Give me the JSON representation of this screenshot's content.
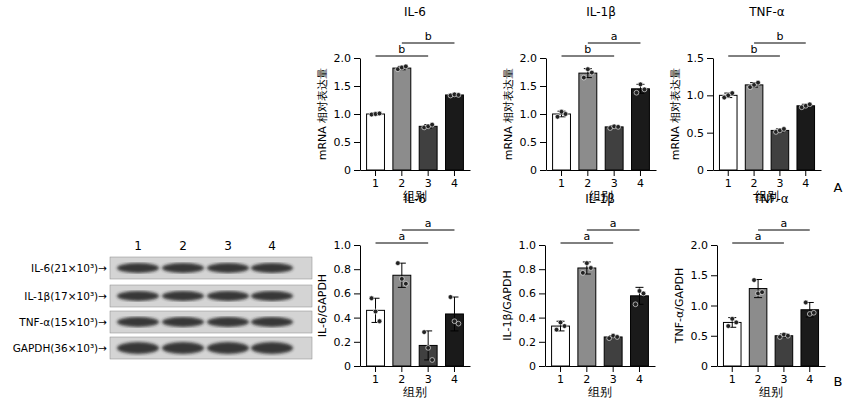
{
  "chart_data": [
    {
      "type": "bar",
      "title": "IL-6",
      "y_label": "mRNA 相对表达量",
      "x_label": "组别",
      "categories": [
        "1",
        "2",
        "3",
        "4"
      ],
      "values": [
        1.0,
        1.82,
        0.78,
        1.34
      ],
      "errors": [
        0.02,
        0.03,
        0.03,
        0.02
      ],
      "points": [
        [
          0.99,
          1.0,
          1.01
        ],
        [
          1.8,
          1.83,
          1.85
        ],
        [
          0.76,
          0.78,
          0.81
        ],
        [
          1.33,
          1.35,
          1.34
        ]
      ],
      "colors": [
        "#ffffff",
        "#8c8c8c",
        "#404040",
        "#1a1a1a"
      ],
      "ylim": [
        0,
        2
      ],
      "yticks": [
        0,
        0.5,
        {
          "value": 1,
          "label": "1.0"
        },
        1.5,
        {
          "value": 2,
          "label": "2.0"
        }
      ],
      "annotations": [
        {
          "text": "b",
          "between": [
            "1",
            "3"
          ]
        },
        {
          "text": "b",
          "between": [
            "2",
            "4"
          ]
        }
      ]
    },
    {
      "type": "bar",
      "title": "IL-1β",
      "y_label": "mRNA 相对表达量",
      "x_label": "组别",
      "categories": [
        "1",
        "2",
        "3",
        "4"
      ],
      "values": [
        1.0,
        1.73,
        0.77,
        1.45
      ],
      "errors": [
        0.05,
        0.08,
        0.02,
        0.08
      ],
      "points": [
        [
          0.95,
          1.04,
          1.0
        ],
        [
          1.65,
          1.8,
          1.74
        ],
        [
          0.75,
          0.78,
          0.77
        ],
        [
          1.38,
          1.53,
          1.44
        ]
      ],
      "colors": [
        "#ffffff",
        "#8c8c8c",
        "#404040",
        "#1a1a1a"
      ],
      "ylim": [
        0,
        2
      ],
      "yticks": [
        0,
        0.5,
        {
          "value": 1,
          "label": "1.0"
        },
        1.5,
        {
          "value": 2,
          "label": "2.0"
        }
      ],
      "annotations": [
        {
          "text": "b",
          "between": [
            "1",
            "3"
          ]
        },
        {
          "text": "a",
          "between": [
            "2",
            "4"
          ]
        }
      ]
    },
    {
      "type": "bar",
      "title": "TNF-α",
      "y_label": "mRNA 相对表达量",
      "x_label": "组别",
      "categories": [
        "1",
        "2",
        "3",
        "4"
      ],
      "values": [
        1.0,
        1.14,
        0.53,
        0.86
      ],
      "errors": [
        0.03,
        0.03,
        0.02,
        0.02
      ],
      "points": [
        [
          0.97,
          1.0,
          1.03
        ],
        [
          1.11,
          1.14,
          1.17
        ],
        [
          0.51,
          0.53,
          0.55
        ],
        [
          0.84,
          0.86,
          0.88
        ]
      ],
      "colors": [
        "#ffffff",
        "#8c8c8c",
        "#404040",
        "#1a1a1a"
      ],
      "ylim": [
        0,
        1.5
      ],
      "yticks": [
        0,
        0.5,
        {
          "value": 1,
          "label": "1.0"
        },
        1.5
      ],
      "annotations": [
        {
          "text": "b",
          "between": [
            "1",
            "3"
          ]
        },
        {
          "text": "b",
          "between": [
            "2",
            "4"
          ]
        }
      ]
    },
    {
      "type": "bar",
      "title": "IL-6",
      "y_label": "IL-6/GAPDH",
      "x_label": "组别",
      "categories": [
        "1",
        "2",
        "3",
        "4"
      ],
      "values": [
        0.46,
        0.75,
        0.17,
        0.43
      ],
      "errors": [
        0.1,
        0.1,
        0.12,
        0.14
      ],
      "points": [
        [
          0.56,
          0.45,
          0.37
        ],
        [
          0.85,
          0.72,
          0.68
        ],
        [
          0.28,
          0.15,
          0.05
        ],
        [
          0.57,
          0.37,
          0.35
        ]
      ],
      "colors": [
        "#ffffff",
        "#8c8c8c",
        "#404040",
        "#1a1a1a"
      ],
      "ylim": [
        0,
        1
      ],
      "yticks": [
        0,
        0.2,
        0.4,
        0.6,
        0.8,
        {
          "value": 1,
          "label": "1.0"
        }
      ],
      "annotations": [
        {
          "text": "a",
          "between": [
            "1",
            "3"
          ]
        },
        {
          "text": "a",
          "between": [
            "2",
            "4"
          ]
        }
      ]
    },
    {
      "type": "bar",
      "title": "IL-1β",
      "y_label": "IL-1β/GAPDH",
      "x_label": "组别",
      "categories": [
        "1",
        "2",
        "3",
        "4"
      ],
      "values": [
        0.33,
        0.81,
        0.24,
        0.58
      ],
      "errors": [
        0.04,
        0.05,
        0.01,
        0.07
      ],
      "points": [
        [
          0.3,
          0.36,
          0.33
        ],
        [
          0.77,
          0.85,
          0.81
        ],
        [
          0.23,
          0.25,
          0.24
        ],
        [
          0.51,
          0.62,
          0.6
        ]
      ],
      "colors": [
        "#ffffff",
        "#8c8c8c",
        "#404040",
        "#1a1a1a"
      ],
      "ylim": [
        0,
        1
      ],
      "yticks": [
        0,
        0.2,
        0.4,
        0.6,
        0.8,
        {
          "value": 1,
          "label": "1.0"
        }
      ],
      "annotations": [
        {
          "text": "a",
          "between": [
            "1",
            "3"
          ]
        },
        {
          "text": "a",
          "between": [
            "2",
            "4"
          ]
        }
      ]
    },
    {
      "type": "bar",
      "title": "TNF-α",
      "y_label": "TNF-α/GAPDH",
      "x_label": "组别",
      "categories": [
        "1",
        "2",
        "3",
        "4"
      ],
      "values": [
        0.72,
        1.28,
        0.5,
        0.93
      ],
      "errors": [
        0.08,
        0.15,
        0.03,
        0.12
      ],
      "points": [
        [
          0.66,
          0.78,
          0.72
        ],
        [
          1.42,
          1.2,
          1.22
        ],
        [
          0.48,
          0.52,
          0.5
        ],
        [
          1.05,
          0.86,
          0.88
        ]
      ],
      "colors": [
        "#ffffff",
        "#8c8c8c",
        "#404040",
        "#1a1a1a"
      ],
      "ylim": [
        0,
        2
      ],
      "yticks": [
        0,
        0.5,
        {
          "value": 1,
          "label": "1.0"
        },
        1.5,
        {
          "value": 2,
          "label": "2.0"
        }
      ],
      "annotations": [
        {
          "text": "a",
          "between": [
            "1",
            "3"
          ]
        },
        {
          "text": "a",
          "between": [
            "2",
            "4"
          ]
        }
      ]
    }
  ],
  "blot": {
    "lanes": [
      "1",
      "2",
      "3",
      "4"
    ],
    "rows": [
      "IL-6(21×10³)→",
      "IL-1β(17×10³)→",
      "TNF-α(15×10³)→",
      "GAPDH(36×10³)→"
    ]
  },
  "panel_labels": [
    "A",
    "B"
  ]
}
